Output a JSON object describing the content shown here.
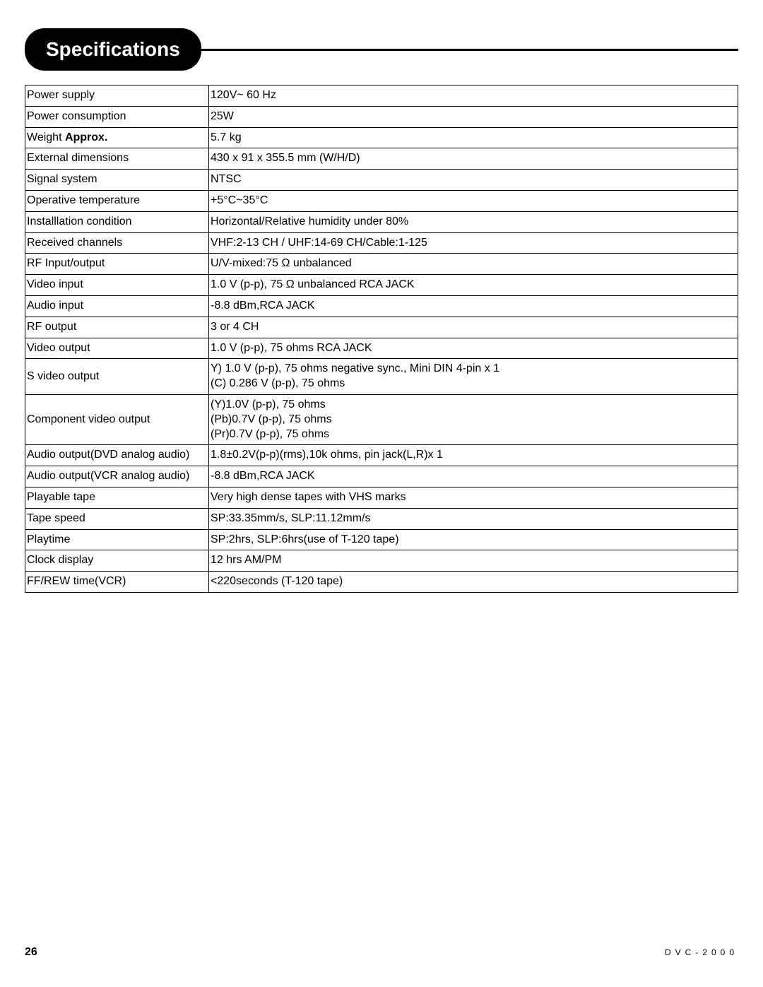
{
  "header": {
    "title": "Specifications"
  },
  "table": {
    "rows": [
      {
        "label": "Power supply",
        "value": "120V~  60 Hz"
      },
      {
        "label": "Power consumption",
        "value": "25W"
      },
      {
        "label_html": "Weight <span class='bold'>Approx.</span>",
        "value": "5.7 kg"
      },
      {
        "label": "External dimensions",
        "value": "430 x 91 x 355.5 mm (W/H/D)"
      },
      {
        "label": "Signal system",
        "value": "NTSC"
      },
      {
        "label": "Operative temperature",
        "value": "+5°C~35°C"
      },
      {
        "label": "Installlation condition",
        "value": "Horizontal/Relative humidity under 80%"
      },
      {
        "label": "Received channels",
        "value": "VHF:2-13 CH / UHF:14-69 CH/Cable:1-125"
      },
      {
        "label": "RF Input/output",
        "value": "U/V-mixed:75 Ω  unbalanced"
      },
      {
        "label": "Video input",
        "value": "1.0 V (p-p), 75 Ω  unbalanced RCA JACK"
      },
      {
        "label": "Audio input",
        "value": "-8.8 dBm,RCA JACK"
      },
      {
        "label": "RF output",
        "value": "3 or 4 CH"
      },
      {
        "label": "Video output",
        "value": "1.0 V (p-p), 75 ohms RCA JACK"
      },
      {
        "label": "S video output",
        "value_html": "Y) 1.0 V (p-p), 75 ohms negative sync., Mini DIN 4-pin x 1<br>(C) 0.286 V (p-p), 75 ohms"
      },
      {
        "label": "Component video output",
        "value_html": "(Y)1.0V (p-p), 75 ohms<br>(Pb)0.7V (p-p), 75 ohms<br>(Pr)0.7V (p-p), 75 ohms"
      },
      {
        "label": "Audio output(DVD analog audio)",
        "value": "1.8±0.2V(p-p)(rms),10k ohms, pin jack(L,R)x 1"
      },
      {
        "label": "Audio output(VCR analog audio)",
        "value": "-8.8 dBm,RCA JACK"
      },
      {
        "label": "Playable tape",
        "value": "Very high dense tapes with VHS marks"
      },
      {
        "label": "Tape speed",
        "value": "SP:33.35mm/s, SLP:11.12mm/s"
      },
      {
        "label": "Playtime",
        "value": "SP:2hrs, SLP:6hrs(use of T-120 tape)"
      },
      {
        "label": "Clock display",
        "value": "12 hrs AM/PM"
      },
      {
        "label": "FF/REW time(VCR)",
        "value": "<220seconds (T-120 tape)"
      }
    ]
  },
  "footer": {
    "page": "26",
    "model": "DVC-2000"
  }
}
